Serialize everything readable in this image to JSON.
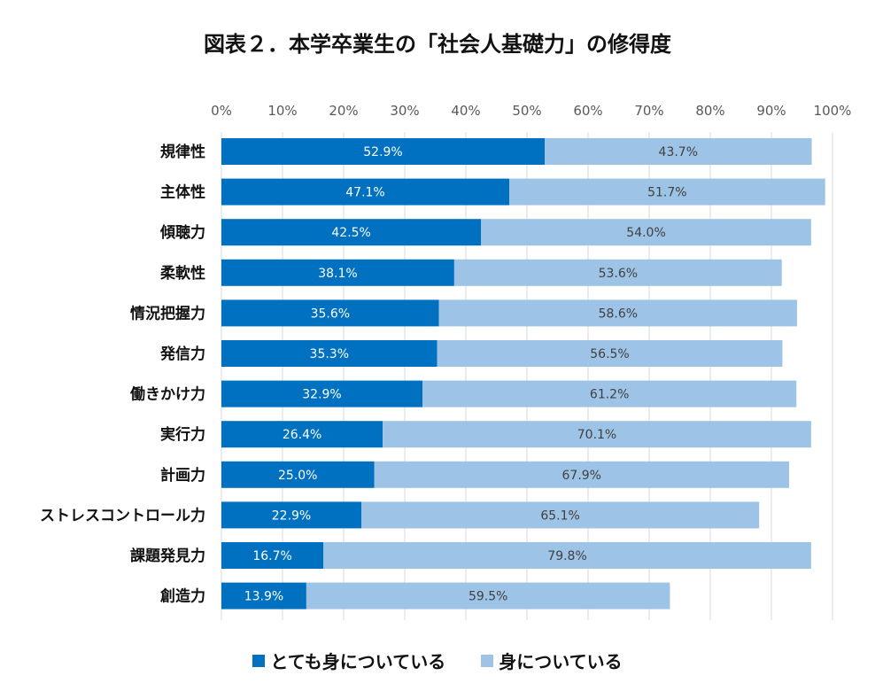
{
  "chart_data": {
    "type": "bar",
    "orientation": "horizontal",
    "stacked": true,
    "title": "図表２．本学卒業生の「社会人基礎力」の修得度",
    "categories": [
      "規律性",
      "主体性",
      "傾聴力",
      "柔軟性",
      "情況把握力",
      "発信力",
      "働きかけ力",
      "実行力",
      "計画力",
      "ストレスコントロール力",
      "課題発見力",
      "創造力"
    ],
    "series": [
      {
        "name": "とても身についている",
        "color": "#0070C0",
        "values": [
          52.9,
          47.1,
          42.5,
          38.1,
          35.6,
          35.3,
          32.9,
          26.4,
          25.0,
          22.9,
          16.7,
          13.9
        ]
      },
      {
        "name": "身についている",
        "color": "#9DC3E6",
        "values": [
          43.7,
          51.7,
          54.0,
          53.6,
          58.6,
          56.5,
          61.2,
          70.1,
          67.9,
          65.1,
          79.8,
          59.5
        ]
      }
    ],
    "xlim": [
      0,
      100
    ],
    "xticks": [
      "0%",
      "10%",
      "20%",
      "30%",
      "40%",
      "50%",
      "60%",
      "70%",
      "80%",
      "90%",
      "100%"
    ],
    "value_format": "percent_1dp",
    "grid": true,
    "legend_position": "bottom"
  }
}
